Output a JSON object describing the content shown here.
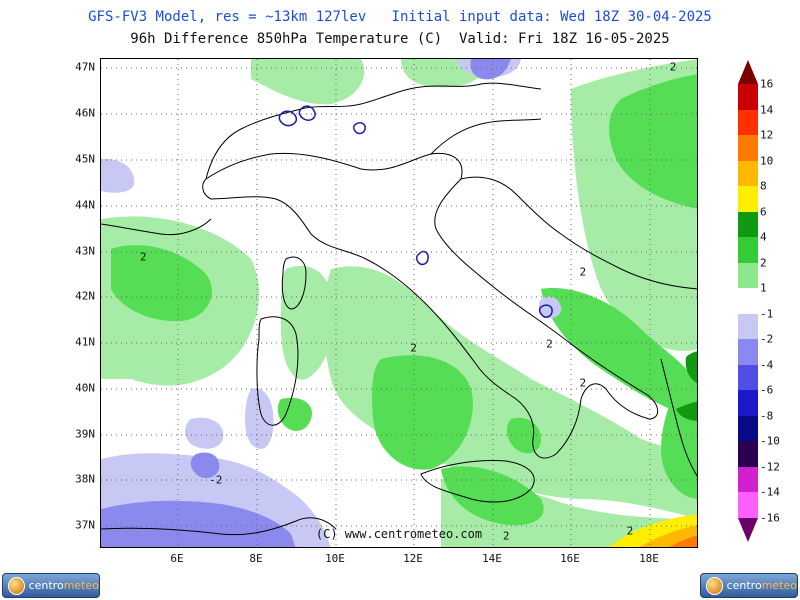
{
  "title_line1": "GFS-FV3 Model, res = ~13km 127lev   Initial input data: Wed 18Z 30-04-2025",
  "title_line2": "96h Difference 850hPa Temperature (C)  Valid: Fri 18Z 16-05-2025",
  "copyright": "(C) www.centrometeo.com",
  "lat_labels": [
    "47N",
    "46N",
    "45N",
    "44N",
    "43N",
    "42N",
    "41N",
    "40N",
    "39N",
    "38N",
    "37N"
  ],
  "lon_labels": [
    "6E",
    "8E",
    "10E",
    "12E",
    "14E",
    "16E",
    "18E"
  ],
  "contour_labels": [
    {
      "text": "2",
      "lon": 5.1,
      "lat": 42.85
    },
    {
      "text": "2",
      "lon": 18.6,
      "lat": 47.0
    },
    {
      "text": "2",
      "lon": 11.99,
      "lat": 40.86
    },
    {
      "text": "2",
      "lon": 16.3,
      "lat": 42.53
    },
    {
      "text": "2",
      "lon": 15.45,
      "lat": 40.95
    },
    {
      "text": "2",
      "lon": 16.3,
      "lat": 40.1
    },
    {
      "text": "-2",
      "lon": 6.95,
      "lat": 37.98
    },
    {
      "text": "2",
      "lon": 14.35,
      "lat": 36.76
    },
    {
      "text": "2",
      "lon": 17.5,
      "lat": 36.87
    }
  ],
  "legend": {
    "values": [
      "16",
      "14",
      "12",
      "10",
      "8",
      "6",
      "4",
      "2",
      "1",
      "-1",
      "-2",
      "-4",
      "-6",
      "-8",
      "-10",
      "-12",
      "-14",
      "-16"
    ],
    "colors": [
      "#7a0000",
      "#c80000",
      "#ff3000",
      "#ff7a00",
      "#ffb800",
      "#ffee00",
      "#119911",
      "#33cc33",
      "#8de88d",
      "#ffffff",
      "#c8c8f5",
      "#8a8aee",
      "#4f4fe6",
      "#1a1acc",
      "#0a0a88",
      "#2a0050",
      "#d020d0",
      "#ff60ff",
      "#6a006a"
    ]
  },
  "logo": {
    "brand_a": "centro",
    "brand_b": "meteo"
  }
}
